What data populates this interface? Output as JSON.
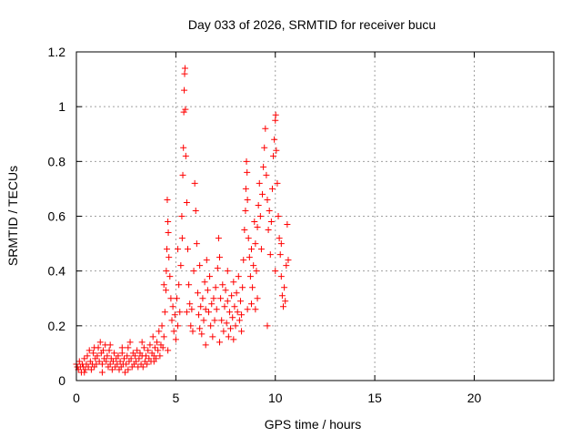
{
  "chart_data": {
    "type": "scatter",
    "title": "Day 033 of 2026, SRMTID for receiver bucu",
    "xlabel": "GPS time / hours",
    "ylabel": "SRMTID / TECUs",
    "xlim": [
      0,
      24
    ],
    "ylim": [
      0,
      1.2
    ],
    "xticks": [
      0,
      5,
      10,
      15,
      20
    ],
    "xtick_labels": [
      "0",
      "5",
      "10",
      "15",
      "20"
    ],
    "yticks": [
      0,
      0.2,
      0.4,
      0.6,
      0.8,
      1,
      1.2
    ],
    "ytick_labels": [
      "0",
      "0.2",
      "0.4",
      "0.6",
      "0.8",
      "1",
      "1.2"
    ],
    "grid": true,
    "marker": "plus",
    "color": "#ff0000",
    "series": [
      {
        "name": "SRMTID",
        "points": [
          [
            0.0,
            0.06
          ],
          [
            0.05,
            0.05
          ],
          [
            0.1,
            0.04
          ],
          [
            0.15,
            0.07
          ],
          [
            0.2,
            0.05
          ],
          [
            0.25,
            0.03
          ],
          [
            0.3,
            0.06
          ],
          [
            0.35,
            0.05
          ],
          [
            0.4,
            0.08
          ],
          [
            0.45,
            0.04
          ],
          [
            0.5,
            0.06
          ],
          [
            0.55,
            0.09
          ],
          [
            0.6,
            0.05
          ],
          [
            0.65,
            0.11
          ],
          [
            0.7,
            0.07
          ],
          [
            0.75,
            0.04
          ],
          [
            0.8,
            0.06
          ],
          [
            0.85,
            0.1
          ],
          [
            0.9,
            0.05
          ],
          [
            0.95,
            0.08
          ],
          [
            1.0,
            0.06
          ],
          [
            1.05,
            0.09
          ],
          [
            1.1,
            0.12
          ],
          [
            1.15,
            0.07
          ],
          [
            1.2,
            0.14
          ],
          [
            1.25,
            0.1
          ],
          [
            1.3,
            0.06
          ],
          [
            1.35,
            0.11
          ],
          [
            1.4,
            0.08
          ],
          [
            1.45,
            0.13
          ],
          [
            1.5,
            0.07
          ],
          [
            1.55,
            0.09
          ],
          [
            1.6,
            0.05
          ],
          [
            1.65,
            0.11
          ],
          [
            1.7,
            0.06
          ],
          [
            1.75,
            0.08
          ],
          [
            1.8,
            0.04
          ],
          [
            1.85,
            0.07
          ],
          [
            1.9,
            0.1
          ],
          [
            1.95,
            0.05
          ],
          [
            2.0,
            0.08
          ],
          [
            2.05,
            0.06
          ],
          [
            2.1,
            0.09
          ],
          [
            2.15,
            0.04
          ],
          [
            2.2,
            0.07
          ],
          [
            2.25,
            0.05
          ],
          [
            2.3,
            0.1
          ],
          [
            2.35,
            0.06
          ],
          [
            2.4,
            0.08
          ],
          [
            2.45,
            0.03
          ],
          [
            2.5,
            0.06
          ],
          [
            2.55,
            0.09
          ],
          [
            2.6,
            0.12
          ],
          [
            2.65,
            0.07
          ],
          [
            2.7,
            0.14
          ],
          [
            2.75,
            0.08
          ],
          [
            2.8,
            0.05
          ],
          [
            2.85,
            0.1
          ],
          [
            2.9,
            0.06
          ],
          [
            2.95,
            0.09
          ],
          [
            3.0,
            0.07
          ],
          [
            3.05,
            0.11
          ],
          [
            3.1,
            0.05
          ],
          [
            3.15,
            0.08
          ],
          [
            3.2,
            0.1
          ],
          [
            3.25,
            0.06
          ],
          [
            3.3,
            0.09
          ],
          [
            3.35,
            0.05
          ],
          [
            3.4,
            0.12
          ],
          [
            3.45,
            0.07
          ],
          [
            3.5,
            0.09
          ],
          [
            3.55,
            0.06
          ],
          [
            3.6,
            0.11
          ],
          [
            3.65,
            0.08
          ],
          [
            3.7,
            0.13
          ],
          [
            3.75,
            0.07
          ],
          [
            3.8,
            0.1
          ],
          [
            3.85,
            0.16
          ],
          [
            3.9,
            0.09
          ],
          [
            3.95,
            0.12
          ],
          [
            4.0,
            0.08
          ],
          [
            4.05,
            0.14
          ],
          [
            4.1,
            0.11
          ],
          [
            4.15,
            0.18
          ],
          [
            4.2,
            0.09
          ],
          [
            4.25,
            0.13
          ],
          [
            4.3,
            0.2
          ],
          [
            4.35,
            0.12
          ],
          [
            4.4,
            0.16
          ],
          [
            4.45,
            0.25
          ],
          [
            4.5,
            0.33
          ],
          [
            4.52,
            0.4
          ],
          [
            4.55,
            0.48
          ],
          [
            4.57,
            0.66
          ],
          [
            4.6,
            0.58
          ],
          [
            4.62,
            0.54
          ],
          [
            4.65,
            0.45
          ],
          [
            4.7,
            0.38
          ],
          [
            4.75,
            0.3
          ],
          [
            4.8,
            0.22
          ],
          [
            4.85,
            0.27
          ],
          [
            4.9,
            0.18
          ],
          [
            4.95,
            0.24
          ],
          [
            5.0,
            0.15
          ],
          [
            5.05,
            0.3
          ],
          [
            5.1,
            0.2
          ],
          [
            5.15,
            0.35
          ],
          [
            5.2,
            0.25
          ],
          [
            5.25,
            0.42
          ],
          [
            5.3,
            0.6
          ],
          [
            5.32,
            0.52
          ],
          [
            5.35,
            0.75
          ],
          [
            5.38,
            0.85
          ],
          [
            5.4,
            0.98
          ],
          [
            5.42,
            1.06
          ],
          [
            5.44,
            1.12
          ],
          [
            5.46,
            1.14
          ],
          [
            5.48,
            0.99
          ],
          [
            5.5,
            0.82
          ],
          [
            5.55,
            0.65
          ],
          [
            5.6,
            0.48
          ],
          [
            5.65,
            0.35
          ],
          [
            5.7,
            0.28
          ],
          [
            5.75,
            0.2
          ],
          [
            5.8,
            0.26
          ],
          [
            5.85,
            0.18
          ],
          [
            5.9,
            0.4
          ],
          [
            5.95,
            0.72
          ],
          [
            6.0,
            0.62
          ],
          [
            6.05,
            0.5
          ],
          [
            6.1,
            0.32
          ],
          [
            6.15,
            0.24
          ],
          [
            6.2,
            0.19
          ],
          [
            6.25,
            0.27
          ],
          [
            6.3,
            0.17
          ],
          [
            6.35,
            0.3
          ],
          [
            6.4,
            0.22
          ],
          [
            6.45,
            0.36
          ],
          [
            6.5,
            0.26
          ],
          [
            6.55,
            0.44
          ],
          [
            6.6,
            0.33
          ],
          [
            6.65,
            0.25
          ],
          [
            6.7,
            0.38
          ],
          [
            6.75,
            0.2
          ],
          [
            6.8,
            0.28
          ],
          [
            6.85,
            0.16
          ],
          [
            6.9,
            0.3
          ],
          [
            6.95,
            0.22
          ],
          [
            7.0,
            0.34
          ],
          [
            7.05,
            0.26
          ],
          [
            7.1,
            0.41
          ],
          [
            7.15,
            0.52
          ],
          [
            7.2,
            0.45
          ],
          [
            7.25,
            0.3
          ],
          [
            7.3,
            0.22
          ],
          [
            7.35,
            0.35
          ],
          [
            7.4,
            0.18
          ],
          [
            7.45,
            0.27
          ],
          [
            7.5,
            0.33
          ],
          [
            7.55,
            0.21
          ],
          [
            7.6,
            0.29
          ],
          [
            7.65,
            0.16
          ],
          [
            7.7,
            0.25
          ],
          [
            7.75,
            0.19
          ],
          [
            7.8,
            0.31
          ],
          [
            7.85,
            0.23
          ],
          [
            7.9,
            0.36
          ],
          [
            7.95,
            0.27
          ],
          [
            8.0,
            0.2
          ],
          [
            8.05,
            0.32
          ],
          [
            8.1,
            0.25
          ],
          [
            8.15,
            0.38
          ],
          [
            8.2,
            0.22
          ],
          [
            8.25,
            0.29
          ],
          [
            8.3,
            0.24
          ],
          [
            8.35,
            0.34
          ],
          [
            8.4,
            0.44
          ],
          [
            8.45,
            0.55
          ],
          [
            8.5,
            0.62
          ],
          [
            8.52,
            0.7
          ],
          [
            8.55,
            0.8
          ],
          [
            8.58,
            0.76
          ],
          [
            8.6,
            0.66
          ],
          [
            8.65,
            0.52
          ],
          [
            8.7,
            0.45
          ],
          [
            8.75,
            0.38
          ],
          [
            8.8,
            0.48
          ],
          [
            8.85,
            0.34
          ],
          [
            8.9,
            0.42
          ],
          [
            8.95,
            0.58
          ],
          [
            9.0,
            0.5
          ],
          [
            9.05,
            0.4
          ],
          [
            9.1,
            0.56
          ],
          [
            9.15,
            0.64
          ],
          [
            9.2,
            0.72
          ],
          [
            9.25,
            0.6
          ],
          [
            9.3,
            0.48
          ],
          [
            9.35,
            0.68
          ],
          [
            9.4,
            0.78
          ],
          [
            9.45,
            0.85
          ],
          [
            9.5,
            0.92
          ],
          [
            9.55,
            0.75
          ],
          [
            9.6,
            0.66
          ],
          [
            9.65,
            0.55
          ],
          [
            9.7,
            0.62
          ],
          [
            9.75,
            0.46
          ],
          [
            9.8,
            0.58
          ],
          [
            9.85,
            0.7
          ],
          [
            9.9,
            0.82
          ],
          [
            9.95,
            0.88
          ],
          [
            10.0,
            0.95
          ],
          [
            10.02,
            0.97
          ],
          [
            10.05,
            0.84
          ],
          [
            10.1,
            0.72
          ],
          [
            10.15,
            0.6
          ],
          [
            10.2,
            0.52
          ],
          [
            10.25,
            0.46
          ],
          [
            10.3,
            0.38
          ],
          [
            10.35,
            0.31
          ],
          [
            10.4,
            0.27
          ],
          [
            10.45,
            0.34
          ],
          [
            10.5,
            0.29
          ],
          [
            10.55,
            0.42
          ],
          [
            10.6,
            0.57
          ],
          [
            10.65,
            0.44
          ],
          [
            9.6,
            0.2
          ],
          [
            9.1,
            0.3
          ],
          [
            8.8,
            0.28
          ],
          [
            5.1,
            0.48
          ],
          [
            4.4,
            0.35
          ],
          [
            3.9,
            0.07
          ],
          [
            2.6,
            0.04
          ],
          [
            1.3,
            0.03
          ],
          [
            0.4,
            0.03
          ],
          [
            6.2,
            0.42
          ],
          [
            7.6,
            0.4
          ],
          [
            8.3,
            0.18
          ],
          [
            9.0,
            0.26
          ],
          [
            10.3,
            0.5
          ],
          [
            10.0,
            0.4
          ],
          [
            1.7,
            0.13
          ],
          [
            0.9,
            0.12
          ],
          [
            2.3,
            0.12
          ],
          [
            3.3,
            0.14
          ],
          [
            4.6,
            0.11
          ],
          [
            5.55,
            0.25
          ],
          [
            6.5,
            0.13
          ],
          [
            7.2,
            0.14
          ],
          [
            7.9,
            0.15
          ],
          [
            8.6,
            0.26
          ]
        ]
      }
    ]
  }
}
